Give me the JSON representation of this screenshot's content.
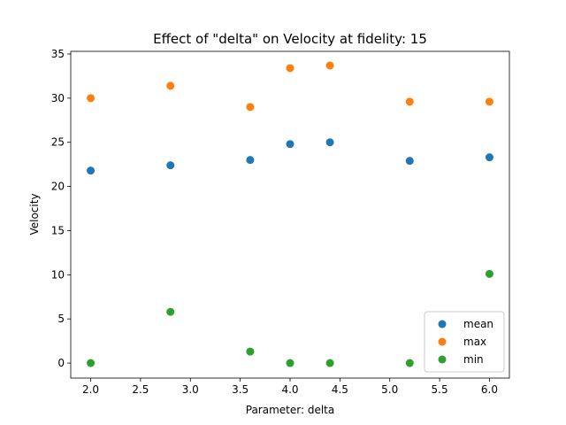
{
  "chart_data": {
    "type": "scatter",
    "title": "Effect of \"delta\" on Velocity at fidelity: 15",
    "xlabel": "Parameter: delta",
    "ylabel": "Velocity",
    "xlim": [
      1.8,
      6.2
    ],
    "ylim": [
      -1.7,
      35.3
    ],
    "xticks": [
      2.0,
      2.5,
      3.0,
      3.5,
      4.0,
      4.5,
      5.0,
      5.5,
      6.0
    ],
    "xtick_labels": [
      "2.0",
      "2.5",
      "3.0",
      "3.5",
      "4.0",
      "4.5",
      "5.0",
      "5.5",
      "6.0"
    ],
    "yticks": [
      0,
      5,
      10,
      15,
      20,
      25,
      30,
      35
    ],
    "ytick_labels": [
      "0",
      "5",
      "10",
      "15",
      "20",
      "25",
      "30",
      "35"
    ],
    "x": [
      2.0,
      2.8,
      3.6,
      4.0,
      4.4,
      5.2,
      6.0
    ],
    "series": [
      {
        "name": "mean",
        "color": "#1f77b4",
        "values": [
          21.8,
          22.4,
          23.0,
          24.8,
          25.0,
          22.9,
          23.3
        ]
      },
      {
        "name": "max",
        "color": "#ff7f0e",
        "values": [
          30.0,
          31.4,
          29.0,
          33.4,
          33.7,
          29.6,
          29.6
        ]
      },
      {
        "name": "min",
        "color": "#2ca02c",
        "values": [
          0.0,
          5.8,
          1.3,
          0.0,
          0.0,
          0.0,
          10.1
        ]
      }
    ],
    "grid": false,
    "legend_position": "lower-right"
  }
}
